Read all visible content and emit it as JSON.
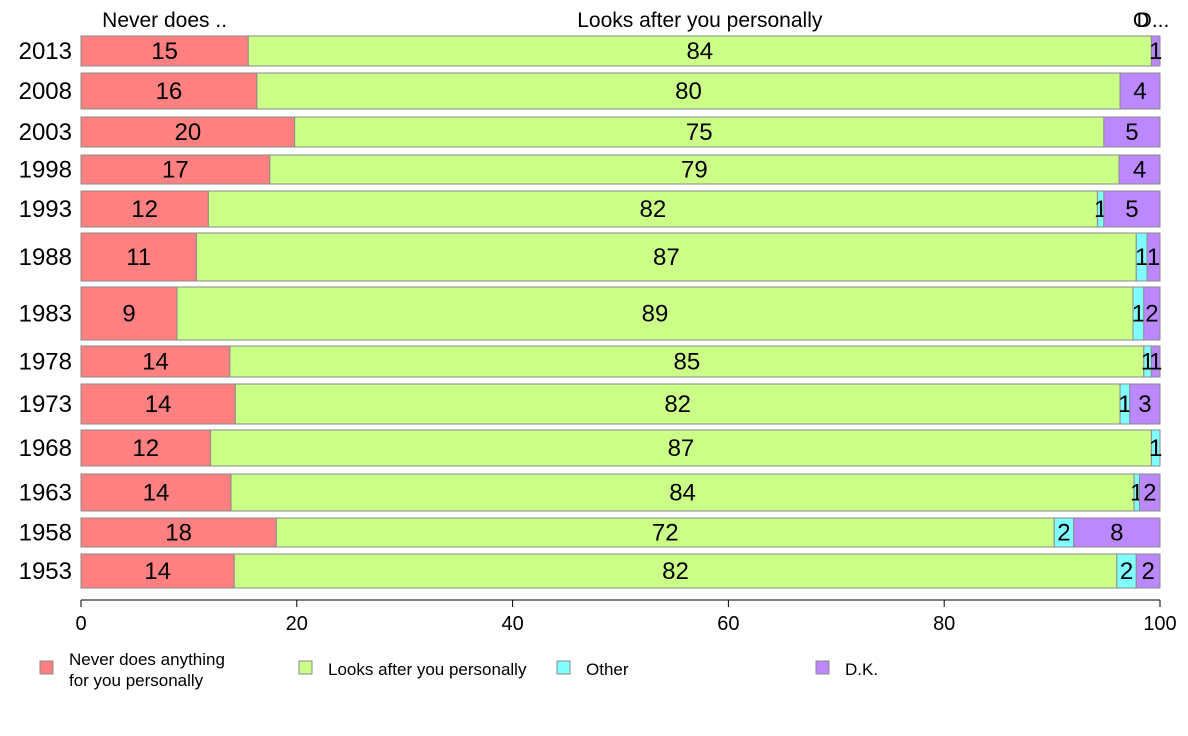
{
  "chart_data": {
    "type": "bar",
    "orientation": "horizontal",
    "stacked": true,
    "title": "",
    "xlabel": "",
    "ylabel": "",
    "xlim": [
      0,
      100
    ],
    "xticks": [
      0,
      20,
      40,
      60,
      80,
      100
    ],
    "grid": false,
    "legend_position": "bottom",
    "top_labels": [
      {
        "text": "Never does ..",
        "series": 0
      },
      {
        "text": "Looks after you personally",
        "series": 1
      },
      {
        "text": "O",
        "series": 2
      },
      {
        "text": "D...",
        "series": 3
      }
    ],
    "categories": [
      "2013",
      "2008",
      "2003",
      "1998",
      "1993",
      "1988",
      "1983",
      "1978",
      "1973",
      "1968",
      "1963",
      "1958",
      "1953"
    ],
    "series": [
      {
        "name": "Never does anything for you personally",
        "color": "#ff8080",
        "values": [
          15.5,
          16.3,
          19.8,
          17.5,
          11.8,
          10.7,
          8.9,
          13.8,
          14.3,
          12.0,
          13.9,
          18.1,
          14.2
        ],
        "labels": [
          "15",
          "16",
          "20",
          "17",
          "12",
          "11",
          "9",
          "14",
          "14",
          "12",
          "14",
          "18",
          "14"
        ]
      },
      {
        "name": "Looks after you personally",
        "color": "#ccff88",
        "values": [
          83.7,
          80.0,
          75.0,
          78.7,
          82.4,
          87.1,
          88.6,
          84.7,
          82.0,
          87.2,
          83.7,
          72.1,
          81.8
        ],
        "labels": [
          "84",
          "80",
          "75",
          "79",
          "82",
          "87",
          "89",
          "85",
          "82",
          "87",
          "84",
          "72",
          "82"
        ]
      },
      {
        "name": "Other",
        "color": "#80ffff",
        "values": [
          0,
          0,
          0,
          0,
          0.6,
          1.0,
          1.0,
          0.7,
          0.9,
          0.8,
          0.5,
          1.8,
          1.8
        ],
        "labels": [
          "",
          "",
          "",
          "",
          "1",
          "1",
          "1",
          "1",
          "1",
          "1",
          "1",
          "2",
          "2"
        ]
      },
      {
        "name": "D.K.",
        "color": "#bb88ff",
        "values": [
          0.8,
          3.7,
          5.2,
          3.8,
          5.2,
          1.2,
          1.5,
          0.8,
          2.8,
          0,
          1.9,
          8.0,
          2.2
        ],
        "labels": [
          "1",
          "4",
          "5",
          "4",
          "5",
          "1",
          "2",
          "1",
          "3",
          "",
          "2",
          "8",
          "2"
        ]
      }
    ]
  },
  "legend": {
    "items": [
      {
        "lines": [
          "Never does anything",
          "for you personally"
        ],
        "color": "#ff8080"
      },
      {
        "lines": [
          "Looks after you personally"
        ],
        "color": "#ccff88"
      },
      {
        "lines": [
          "Other"
        ],
        "color": "#80ffff"
      },
      {
        "lines": [
          "D.K."
        ],
        "color": "#bb88ff"
      }
    ]
  }
}
